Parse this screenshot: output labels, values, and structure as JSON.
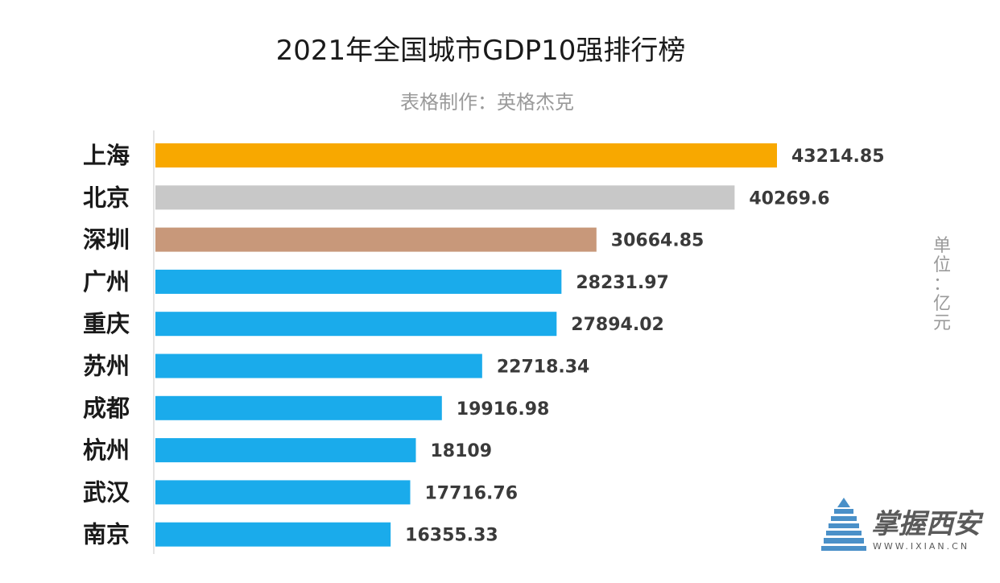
{
  "chart_data": {
    "type": "bar",
    "orientation": "horizontal",
    "title": "2021年全国城市GDP10强排行榜",
    "subtitle": "表格制作：英格杰克",
    "unit": "单位：亿元",
    "categories": [
      "上海",
      "北京",
      "深圳",
      "广州",
      "重庆",
      "苏州",
      "成都",
      "杭州",
      "武汉",
      "南京"
    ],
    "values": [
      43214.85,
      40269.6,
      30664.85,
      28231.97,
      27894.02,
      22718.34,
      19916.98,
      18109,
      17716.76,
      16355.33
    ],
    "value_labels": [
      "43214.85",
      "40269.6",
      "30664.85",
      "28231.97",
      "27894.02",
      "22718.34",
      "19916.98",
      "18109",
      "17716.76",
      "16355.33"
    ],
    "colors": [
      "#F8A800",
      "#C8C8C8",
      "#C8987A",
      "#1AABEB",
      "#1AABEB",
      "#1AABEB",
      "#1AABEB",
      "#1AABEB",
      "#1AABEB",
      "#1AABEB"
    ],
    "xlim": [
      0,
      50000
    ],
    "grid": false,
    "legend": "none"
  },
  "watermark": {
    "logo_icon": "pagoda-icon",
    "name": "掌握西安",
    "url": "WWW.IXIAN.CN",
    "color": "#4A90C8"
  }
}
